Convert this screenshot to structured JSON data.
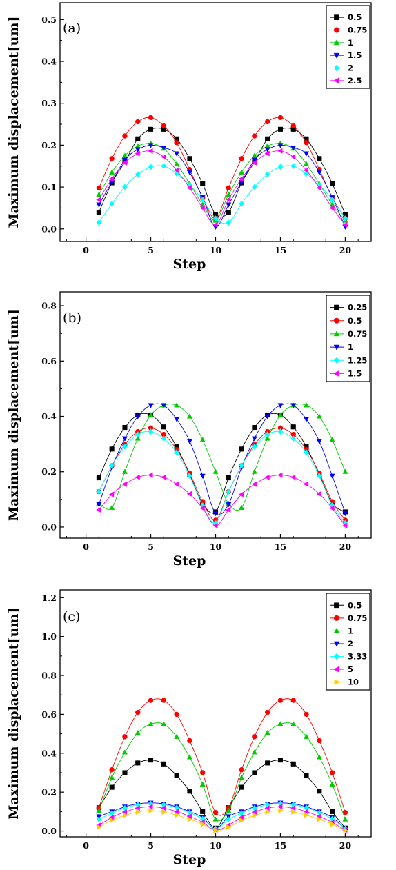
{
  "chart_data": [
    {
      "panel_label": "(a)",
      "type": "line",
      "xlabel": "Step",
      "ylabel": "Maximum displacement[um]",
      "xlim": [
        -2,
        22
      ],
      "ylim": [
        -0.03,
        0.54
      ],
      "xticks": [
        0,
        5,
        10,
        15,
        20
      ],
      "yticks": [
        0.0,
        0.1,
        0.2,
        0.3,
        0.4,
        0.5
      ],
      "ytick_labels": [
        "0.0",
        "0.1",
        "0.2",
        "0.3",
        "0.4",
        "0.5"
      ],
      "legend_placement": "top-right",
      "x": [
        1,
        2,
        3,
        4,
        5,
        6,
        7,
        8,
        9,
        10,
        11,
        12,
        13,
        14,
        15,
        16,
        17,
        18,
        19,
        20
      ],
      "series": [
        {
          "name": "0.5",
          "color": "#000000",
          "marker": "square",
          "values": [
            0.04,
            0.11,
            0.16,
            0.215,
            0.238,
            0.238,
            0.215,
            0.168,
            0.108,
            0.035,
            0.04,
            0.11,
            0.16,
            0.215,
            0.238,
            0.238,
            0.215,
            0.168,
            0.108,
            0.035
          ]
        },
        {
          "name": "0.75",
          "color": "#ff0000",
          "marker": "circle",
          "values": [
            0.098,
            0.168,
            0.222,
            0.256,
            0.266,
            0.246,
            0.206,
            0.142,
            0.075,
            0.025,
            0.098,
            0.168,
            0.222,
            0.256,
            0.266,
            0.246,
            0.206,
            0.142,
            0.075,
            0.025
          ]
        },
        {
          "name": "1",
          "color": "#00cc00",
          "marker": "triangle-up",
          "values": [
            0.082,
            0.135,
            0.175,
            0.198,
            0.204,
            0.192,
            0.155,
            0.108,
            0.058,
            0.02,
            0.082,
            0.135,
            0.175,
            0.198,
            0.204,
            0.192,
            0.155,
            0.108,
            0.058,
            0.02
          ]
        },
        {
          "name": "1.5",
          "color": "#0000ff",
          "marker": "triangle-down",
          "values": [
            0.058,
            0.112,
            0.165,
            0.19,
            0.2,
            0.194,
            0.18,
            0.135,
            0.075,
            0.005,
            0.058,
            0.112,
            0.165,
            0.19,
            0.2,
            0.194,
            0.18,
            0.135,
            0.075,
            0.005
          ]
        },
        {
          "name": "2",
          "color": "#00ffff",
          "marker": "diamond",
          "values": [
            0.015,
            0.06,
            0.1,
            0.13,
            0.148,
            0.15,
            0.132,
            0.105,
            0.07,
            0.025,
            0.015,
            0.06,
            0.1,
            0.13,
            0.148,
            0.15,
            0.132,
            0.105,
            0.07,
            0.025
          ]
        },
        {
          "name": "2.5",
          "color": "#ff00ff",
          "marker": "triangle-left",
          "values": [
            0.07,
            0.12,
            0.158,
            0.18,
            0.186,
            0.172,
            0.14,
            0.098,
            0.05,
            0.01,
            0.07,
            0.12,
            0.158,
            0.18,
            0.186,
            0.172,
            0.14,
            0.098,
            0.05,
            0.01
          ]
        }
      ]
    },
    {
      "panel_label": "(b)",
      "type": "line",
      "xlabel": "Step",
      "ylabel": "Maximum displacement[um]",
      "xlim": [
        -2,
        22
      ],
      "ylim": [
        -0.04,
        0.85
      ],
      "xticks": [
        0,
        5,
        10,
        15,
        20
      ],
      "yticks": [
        0.0,
        0.2,
        0.4,
        0.6,
        0.8
      ],
      "ytick_labels": [
        "0.0",
        "0.2",
        "0.4",
        "0.6",
        "0.8"
      ],
      "legend_placement": "top-right",
      "x": [
        1,
        2,
        3,
        4,
        5,
        6,
        7,
        8,
        9,
        10,
        11,
        12,
        13,
        14,
        15,
        16,
        17,
        18,
        19,
        20
      ],
      "series": [
        {
          "name": "0.25",
          "color": "#000000",
          "marker": "square",
          "values": [
            0.178,
            0.282,
            0.36,
            0.405,
            0.405,
            0.362,
            0.29,
            0.19,
            0.085,
            0.055,
            0.178,
            0.282,
            0.36,
            0.405,
            0.405,
            0.362,
            0.29,
            0.19,
            0.085,
            0.055
          ]
        },
        {
          "name": "0.5",
          "color": "#ff0000",
          "marker": "circle",
          "values": [
            0.128,
            0.222,
            0.298,
            0.345,
            0.358,
            0.335,
            0.28,
            0.195,
            0.092,
            0.025,
            0.128,
            0.222,
            0.298,
            0.345,
            0.358,
            0.335,
            0.28,
            0.195,
            0.092,
            0.025
          ]
        },
        {
          "name": "0.75",
          "color": "#00cc00",
          "marker": "triangle-up",
          "values": [
            0.085,
            0.07,
            0.2,
            0.32,
            0.405,
            0.44,
            0.44,
            0.4,
            0.315,
            0.2,
            0.085,
            0.07,
            0.2,
            0.32,
            0.405,
            0.44,
            0.44,
            0.4,
            0.315,
            0.2
          ]
        },
        {
          "name": "1",
          "color": "#0000ff",
          "marker": "triangle-down",
          "values": [
            0.082,
            0.215,
            0.32,
            0.4,
            0.44,
            0.44,
            0.39,
            0.31,
            0.185,
            0.05,
            0.082,
            0.215,
            0.32,
            0.4,
            0.44,
            0.44,
            0.39,
            0.31,
            0.185,
            0.05
          ]
        },
        {
          "name": "1.25",
          "color": "#00ffff",
          "marker": "diamond",
          "values": [
            0.128,
            0.222,
            0.29,
            0.335,
            0.345,
            0.32,
            0.27,
            0.185,
            0.078,
            0.015,
            0.128,
            0.222,
            0.29,
            0.335,
            0.345,
            0.32,
            0.27,
            0.185,
            0.078,
            0.015
          ]
        },
        {
          "name": "1.5",
          "color": "#ff00ff",
          "marker": "triangle-left",
          "values": [
            0.062,
            0.118,
            0.155,
            0.18,
            0.188,
            0.18,
            0.155,
            0.12,
            0.068,
            0.005,
            0.062,
            0.118,
            0.155,
            0.18,
            0.188,
            0.18,
            0.155,
            0.12,
            0.068,
            0.005
          ]
        }
      ]
    },
    {
      "panel_label": "(c)",
      "type": "line",
      "xlabel": "Step",
      "ylabel": "Maximum displacement[um]",
      "xlim": [
        -2,
        22
      ],
      "ylim": [
        -0.03,
        1.24
      ],
      "xticks": [
        0,
        5,
        10,
        15,
        20
      ],
      "yticks": [
        0.0,
        0.2,
        0.4,
        0.6,
        0.8,
        1.0,
        1.2
      ],
      "ytick_labels": [
        "0.0",
        "0.2",
        "0.4",
        "0.6",
        "0.8",
        "1.0",
        "1.2"
      ],
      "legend_placement": "top-right",
      "x": [
        1,
        2,
        3,
        4,
        5,
        6,
        7,
        8,
        9,
        10,
        11,
        12,
        13,
        14,
        15,
        16,
        17,
        18,
        19,
        20
      ],
      "series": [
        {
          "name": "0.5",
          "color": "#000000",
          "marker": "square",
          "values": [
            0.12,
            0.225,
            0.3,
            0.35,
            0.365,
            0.345,
            0.285,
            0.205,
            0.1,
            0.015,
            0.12,
            0.225,
            0.3,
            0.35,
            0.365,
            0.345,
            0.285,
            0.205,
            0.1,
            0.015
          ]
        },
        {
          "name": "0.75",
          "color": "#ff0000",
          "marker": "circle",
          "values": [
            0.12,
            0.315,
            0.485,
            0.61,
            0.672,
            0.672,
            0.6,
            0.465,
            0.3,
            0.095,
            0.12,
            0.315,
            0.485,
            0.61,
            0.672,
            0.672,
            0.6,
            0.465,
            0.3,
            0.095
          ]
        },
        {
          "name": "1",
          "color": "#00cc00",
          "marker": "triangle-up",
          "values": [
            0.105,
            0.275,
            0.405,
            0.505,
            0.55,
            0.55,
            0.485,
            0.38,
            0.24,
            0.06,
            0.105,
            0.275,
            0.405,
            0.505,
            0.55,
            0.55,
            0.485,
            0.38,
            0.24,
            0.06
          ]
        },
        {
          "name": "2",
          "color": "#0000ff",
          "marker": "triangle-down",
          "values": [
            0.075,
            0.1,
            0.125,
            0.14,
            0.145,
            0.14,
            0.125,
            0.1,
            0.07,
            0.01,
            0.075,
            0.1,
            0.125,
            0.14,
            0.145,
            0.14,
            0.125,
            0.1,
            0.07,
            0.01
          ]
        },
        {
          "name": "3.33",
          "color": "#00ffff",
          "marker": "diamond",
          "values": [
            0.06,
            0.092,
            0.118,
            0.135,
            0.14,
            0.135,
            0.12,
            0.095,
            0.062,
            0.012,
            0.06,
            0.092,
            0.118,
            0.135,
            0.14,
            0.135,
            0.12,
            0.095,
            0.062,
            0.012
          ]
        },
        {
          "name": "5",
          "color": "#ff00ff",
          "marker": "triangle-left",
          "values": [
            0.03,
            0.07,
            0.098,
            0.118,
            0.125,
            0.118,
            0.1,
            0.075,
            0.045,
            0.005,
            0.03,
            0.07,
            0.098,
            0.118,
            0.125,
            0.118,
            0.1,
            0.075,
            0.045,
            0.005
          ]
        },
        {
          "name": "10",
          "color": "#ffcc00",
          "marker": "triangle-right",
          "values": [
            0.02,
            0.055,
            0.08,
            0.098,
            0.105,
            0.098,
            0.082,
            0.06,
            0.035,
            0.003,
            0.02,
            0.055,
            0.08,
            0.098,
            0.105,
            0.098,
            0.082,
            0.06,
            0.035,
            0.003
          ]
        }
      ]
    }
  ]
}
